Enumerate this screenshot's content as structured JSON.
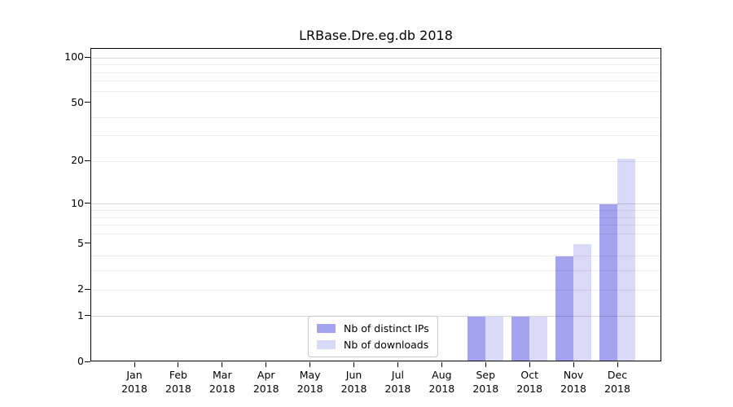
{
  "title": "LRBase.Dre.eg.db 2018",
  "legend": {
    "items": [
      {
        "label": "Nb of distinct IPs"
      },
      {
        "label": "Nb of downloads"
      }
    ]
  },
  "colors": {
    "distinct_ips_bar": "#a3a3f0",
    "downloads_bar": "#dadaf8",
    "grid_minor": "rgba(0,0,0,0.075)",
    "grid_major": "rgba(0,0,0,0.16)",
    "axis": "#000000",
    "legend_border": "#c9c9c9",
    "background": "#ffffff"
  },
  "chart_data": {
    "type": "bar",
    "title": "LRBase.Dre.eg.db 2018",
    "categories": [
      "Jan",
      "Feb",
      "Mar",
      "Apr",
      "May",
      "Jun",
      "Jul",
      "Aug",
      "Sep",
      "Oct",
      "Nov",
      "Dec"
    ],
    "category_year": "2018",
    "series": [
      {
        "name": "Nb of distinct IPs",
        "color": "#a3a3f0",
        "values": [
          0,
          0,
          0,
          0,
          0,
          0,
          0,
          0,
          1,
          1,
          4,
          10
        ]
      },
      {
        "name": "Nb of downloads",
        "color": "#dadaf8",
        "values": [
          0,
          0,
          0,
          0,
          0,
          0,
          0,
          0,
          1,
          1,
          5,
          21
        ]
      }
    ],
    "xlabel": "",
    "ylabel": "",
    "yscale": "log1p",
    "ylim": [
      0,
      115
    ],
    "yticks": [
      0,
      1,
      2,
      5,
      10,
      20,
      50,
      100
    ],
    "y_gridlines_minor": [
      2,
      3,
      4,
      6,
      7,
      8,
      9,
      20,
      30,
      40,
      60,
      70,
      80,
      90
    ],
    "y_gridlines_major": [
      1,
      10,
      100
    ],
    "grid": "horizontal",
    "legend_position": "lower center"
  }
}
